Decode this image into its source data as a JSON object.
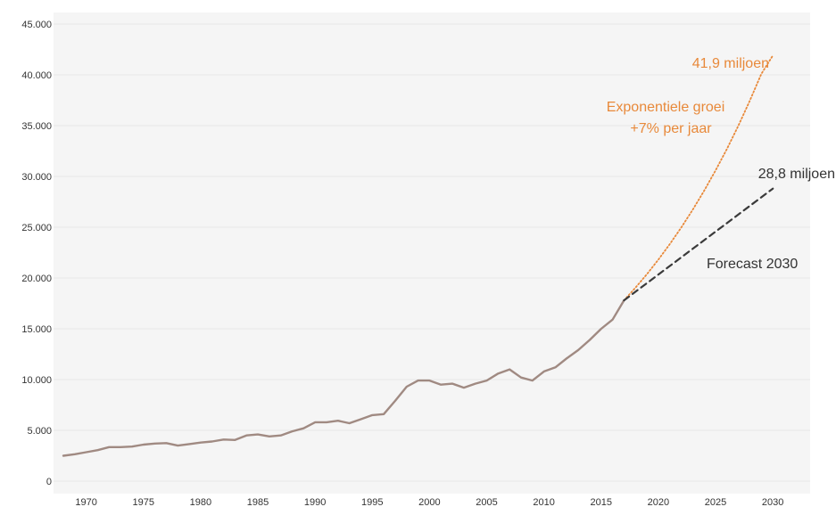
{
  "chart_data": {
    "type": "line",
    "title": "",
    "xlabel": "",
    "ylabel": "",
    "xlim": [
      1968,
      2031
    ],
    "ylim": [
      0,
      45000
    ],
    "grid": "horizontal",
    "x_ticks": [
      "1970",
      "1975",
      "1980",
      "1985",
      "1990",
      "1995",
      "2000",
      "2005",
      "2010",
      "2015",
      "2020",
      "2025",
      "2030"
    ],
    "y_ticks": [
      "0",
      "5.000",
      "10.000",
      "15.000",
      "20.000",
      "25.000",
      "30.000",
      "35.000",
      "40.000",
      "45.000"
    ],
    "colors": {
      "history": "#a08a82",
      "exponential": "#e8893a",
      "forecast": "#3a3a3a",
      "grid": "#e6e6e6",
      "plot_bg": "#f5f5f5"
    },
    "series": [
      {
        "style": "solid",
        "x": [
          1968,
          1969,
          1970,
          1971,
          1972,
          1973,
          1974,
          1975,
          1976,
          1977,
          1978,
          1979,
          1980,
          1981,
          1982,
          1983,
          1984,
          1985,
          1986,
          1987,
          1988,
          1989,
          1990,
          1991,
          1992,
          1993,
          1994,
          1995,
          1996,
          1997,
          1998,
          1999,
          2000,
          2001,
          2002,
          2003,
          2004,
          2005,
          2006,
          2007,
          2008,
          2009,
          2010,
          2011,
          2012,
          2013,
          2014,
          2015,
          2016,
          2017
        ],
        "y": [
          2500,
          2650,
          2850,
          3050,
          3350,
          3350,
          3400,
          3600,
          3700,
          3750,
          3500,
          3650,
          3800,
          3900,
          4100,
          4050,
          4500,
          4600,
          4400,
          4500,
          4900,
          5200,
          5800,
          5800,
          5950,
          5700,
          6100,
          6500,
          6600,
          7900,
          9300,
          9900,
          9900,
          9500,
          9600,
          9200,
          9600,
          9900,
          10600,
          11000,
          10200,
          9900,
          10800,
          11200,
          12100,
          12900,
          13900,
          15000,
          15900,
          17800
        ]
      },
      {
        "style": "dotted",
        "x": [
          2017,
          2018,
          2019,
          2020,
          2021,
          2022,
          2023,
          2024,
          2025,
          2026,
          2027,
          2028,
          2029,
          2030
        ],
        "y": [
          17800,
          19050,
          20380,
          21810,
          23330,
          24970,
          26720,
          28590,
          30590,
          32730,
          35020,
          37470,
          40090,
          41900
        ]
      },
      {
        "style": "dashed",
        "x": [
          2017,
          2030
        ],
        "y": [
          17800,
          28800
        ]
      }
    ],
    "annotations": {
      "exp_end_label": "41,9 miljoen",
      "exp_desc_line1": "Exponentiele groei",
      "exp_desc_line2": "+7% per jaar",
      "forecast_end_label": "28,8 miljoen",
      "forecast_label": "Forecast 2030"
    }
  }
}
